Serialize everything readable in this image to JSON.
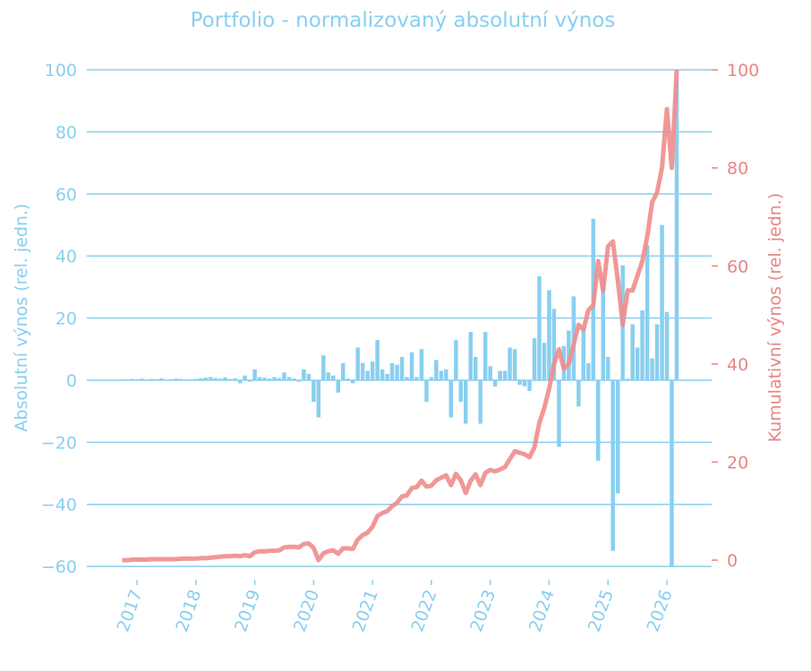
{
  "chart_data": {
    "type": "combo",
    "title": "Portfolio - normalizovaný absolutní výnos",
    "ylabel": "Absolutní výnos (rel. jedn.)",
    "y2label": "Kumulativní výnos (rel. jedn.)",
    "x": [
      2016.75,
      2016.833,
      2016.917,
      2017,
      2017.083,
      2017.167,
      2017.25,
      2017.333,
      2017.417,
      2017.5,
      2017.583,
      2017.667,
      2017.75,
      2017.833,
      2017.917,
      2018,
      2018.083,
      2018.167,
      2018.25,
      2018.333,
      2018.417,
      2018.5,
      2018.583,
      2018.667,
      2018.75,
      2018.833,
      2018.917,
      2019,
      2019.083,
      2019.167,
      2019.25,
      2019.333,
      2019.417,
      2019.5,
      2019.583,
      2019.667,
      2019.75,
      2019.833,
      2019.917,
      2020,
      2020.083,
      2020.167,
      2020.25,
      2020.333,
      2020.417,
      2020.5,
      2020.583,
      2020.667,
      2020.75,
      2020.833,
      2020.917,
      2021,
      2021.083,
      2021.167,
      2021.25,
      2021.333,
      2021.417,
      2021.5,
      2021.583,
      2021.667,
      2021.75,
      2021.833,
      2021.917,
      2022,
      2022.083,
      2022.167,
      2022.25,
      2022.333,
      2022.417,
      2022.5,
      2022.583,
      2022.667,
      2022.75,
      2022.833,
      2022.917,
      2023,
      2023.083,
      2023.167,
      2023.25,
      2023.333,
      2023.417,
      2023.5,
      2023.583,
      2023.667,
      2023.75,
      2023.833,
      2023.917,
      2024,
      2024.083,
      2024.167,
      2024.25,
      2024.333,
      2024.417,
      2024.5,
      2024.583,
      2024.667,
      2024.75,
      2024.833,
      2024.917,
      2025,
      2025.083,
      2025.167,
      2025.25,
      2025.333,
      2025.417,
      2025.5,
      2025.583,
      2025.667,
      2025.75,
      2025.833,
      2025.917,
      2026,
      2026.083,
      2026.167
    ],
    "series": [
      {
        "type": "bar",
        "color": "#89cff0",
        "values": [
          0.3,
          0.2,
          0.4,
          0.3,
          0.5,
          0.2,
          0.4,
          0.3,
          0.6,
          0.2,
          0.3,
          0.5,
          0.4,
          0.3,
          0.2,
          0.4,
          0.6,
          0.8,
          1,
          0.7,
          0.5,
          0.9,
          0.4,
          0.6,
          -1,
          1.5,
          -0.5,
          3.5,
          1,
          0.8,
          0.5,
          1,
          0.7,
          2.5,
          1,
          0.5,
          -0.5,
          3.5,
          2,
          -7,
          -12,
          8,
          2.5,
          1.5,
          -4,
          5.5,
          0.5,
          -1,
          10.5,
          5.5,
          3,
          6,
          13,
          3.5,
          2,
          5.5,
          5,
          7.5,
          1,
          9,
          1,
          10,
          -7,
          1,
          6.5,
          3,
          3.5,
          -12,
          13,
          -7,
          -14,
          15.5,
          7.5,
          -14,
          15.5,
          4.5,
          -2,
          3,
          3,
          10.5,
          10,
          -1.5,
          -2,
          -3.5,
          13.5,
          33.5,
          12,
          29,
          23,
          -21.5,
          11,
          16,
          27,
          -8.5,
          17,
          5.5,
          52,
          -26,
          33,
          7.5,
          -55,
          -36.5,
          37,
          0.5,
          18,
          10.5,
          22.5,
          43.5,
          7,
          18,
          50,
          22,
          -60,
          97
        ]
      },
      {
        "type": "line",
        "axis": "y2",
        "color": "#f08c8c",
        "values": [
          0,
          0,
          0.1,
          0.1,
          0.1,
          0.1,
          0.2,
          0.2,
          0.2,
          0.2,
          0.2,
          0.2,
          0.3,
          0.3,
          0.3,
          0.3,
          0.4,
          0.4,
          0.5,
          0.6,
          0.7,
          0.8,
          0.8,
          0.9,
          0.8,
          1,
          0.8,
          1.6,
          1.8,
          1.8,
          1.9,
          1.9,
          2,
          2.6,
          2.7,
          2.7,
          2.6,
          3.3,
          3.4,
          2.5,
          0,
          1.4,
          1.8,
          2,
          1.3,
          2.4,
          2.4,
          2.3,
          4.2,
          5.1,
          5.6,
          6.8,
          9,
          9.6,
          10,
          11,
          11.7,
          13,
          13.2,
          14.7,
          14.9,
          16.2,
          15,
          15.2,
          16.3,
          16.8,
          17.3,
          15.3,
          17.6,
          16.3,
          13.7,
          16.2,
          17.5,
          15.3,
          17.8,
          18.4,
          18.1,
          18.5,
          19,
          20.6,
          22.2,
          21.9,
          21.6,
          21,
          23,
          28,
          31,
          35,
          40,
          43,
          39,
          40,
          44,
          48,
          47,
          51,
          52,
          61,
          55,
          64,
          65,
          57,
          48,
          55,
          55,
          58,
          61,
          66,
          73,
          75,
          80,
          92,
          80,
          100
        ]
      }
    ],
    "xlim": [
      2016.148,
      2026.76
    ],
    "xticks": [
      2017,
      2018,
      2019,
      2020,
      2021,
      2022,
      2023,
      2024,
      2025,
      2026
    ],
    "ylim": [
      -64.3,
      105.2
    ],
    "yticks": [
      {
        "value": -60,
        "label": "−60"
      },
      {
        "value": -40,
        "label": "−40"
      },
      {
        "value": -20,
        "label": "−20"
      },
      0,
      20,
      40,
      60,
      80,
      100
    ],
    "y2lim": [
      -4,
      103.3
    ],
    "y2ticks": [
      0,
      20,
      40,
      60,
      80,
      100
    ],
    "grid": true,
    "axis_color": "#89cff0",
    "axis2_color": "#e88585"
  }
}
